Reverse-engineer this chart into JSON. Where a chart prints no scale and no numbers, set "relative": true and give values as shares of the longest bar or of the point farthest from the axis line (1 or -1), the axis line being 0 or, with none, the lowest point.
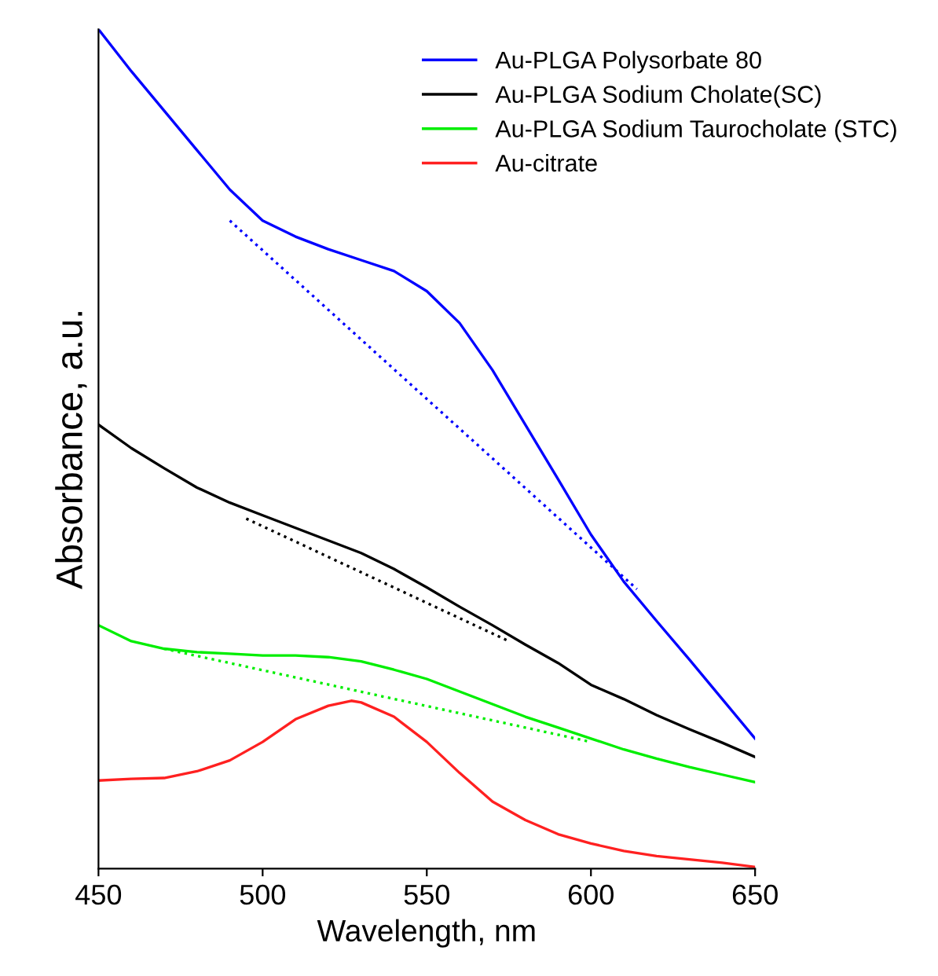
{
  "chart_data": {
    "type": "line",
    "xlabel": "Wavelength, nm",
    "ylabel": "Absorbance, a.u.",
    "relative": true,
    "xlim": [
      450,
      650
    ],
    "xticks": [
      450,
      500,
      550,
      600,
      650
    ],
    "legend": "top right",
    "grid": false,
    "x": [
      450,
      460,
      470,
      480,
      490,
      500,
      510,
      520,
      530,
      540,
      550,
      560,
      570,
      580,
      590,
      600,
      610,
      620,
      630,
      640,
      650
    ],
    "series": [
      {
        "name": "Au-PLGA Polysorbate 80",
        "color": "#0000ff",
        "values": [
          1.0,
          0.95,
          0.903,
          0.856,
          0.809,
          0.772,
          0.753,
          0.738,
          0.725,
          0.712,
          0.688,
          0.65,
          0.594,
          0.529,
          0.464,
          0.398,
          0.342,
          0.295,
          0.249,
          0.202,
          0.155
        ]
      },
      {
        "name": "Au-PLGA Sodium Cholate(SC)",
        "color": "#000000",
        "values": [
          0.529,
          0.501,
          0.477,
          0.454,
          0.436,
          0.421,
          0.406,
          0.391,
          0.376,
          0.357,
          0.335,
          0.312,
          0.29,
          0.267,
          0.245,
          0.219,
          0.202,
          0.183,
          0.166,
          0.15,
          0.133
        ]
      },
      {
        "name": "Au-PLGA Sodium Taurocholate (STC)",
        "color": "#00ee00",
        "values": [
          0.29,
          0.271,
          0.262,
          0.258,
          0.256,
          0.254,
          0.254,
          0.252,
          0.247,
          0.237,
          0.226,
          0.211,
          0.196,
          0.181,
          0.168,
          0.155,
          0.142,
          0.131,
          0.121,
          0.112,
          0.103
        ]
      },
      {
        "name": "Au-citrate",
        "color": "#ff2020",
        "x": [
          450,
          460,
          470,
          480,
          490,
          500,
          510,
          520,
          527,
          530,
          540,
          550,
          560,
          570,
          580,
          590,
          600,
          610,
          620,
          630,
          640,
          650
        ],
        "values": [
          0.105,
          0.107,
          0.108,
          0.116,
          0.129,
          0.151,
          0.178,
          0.194,
          0.2,
          0.198,
          0.181,
          0.151,
          0.114,
          0.08,
          0.058,
          0.041,
          0.03,
          0.021,
          0.015,
          0.011,
          0.007,
          0.002
        ]
      },
      {
        "color": "#0000ff",
        "line_style": "dotted",
        "x": [
          490,
          614
        ],
        "values": [
          0.772,
          0.333
        ]
      },
      {
        "color": "#000000",
        "line_style": "dotted",
        "x": [
          495,
          575
        ],
        "values": [
          0.417,
          0.271
        ]
      },
      {
        "color": "#00ee00",
        "line_style": "dotted",
        "x": [
          470,
          600
        ],
        "values": [
          0.262,
          0.151
        ]
      }
    ]
  }
}
